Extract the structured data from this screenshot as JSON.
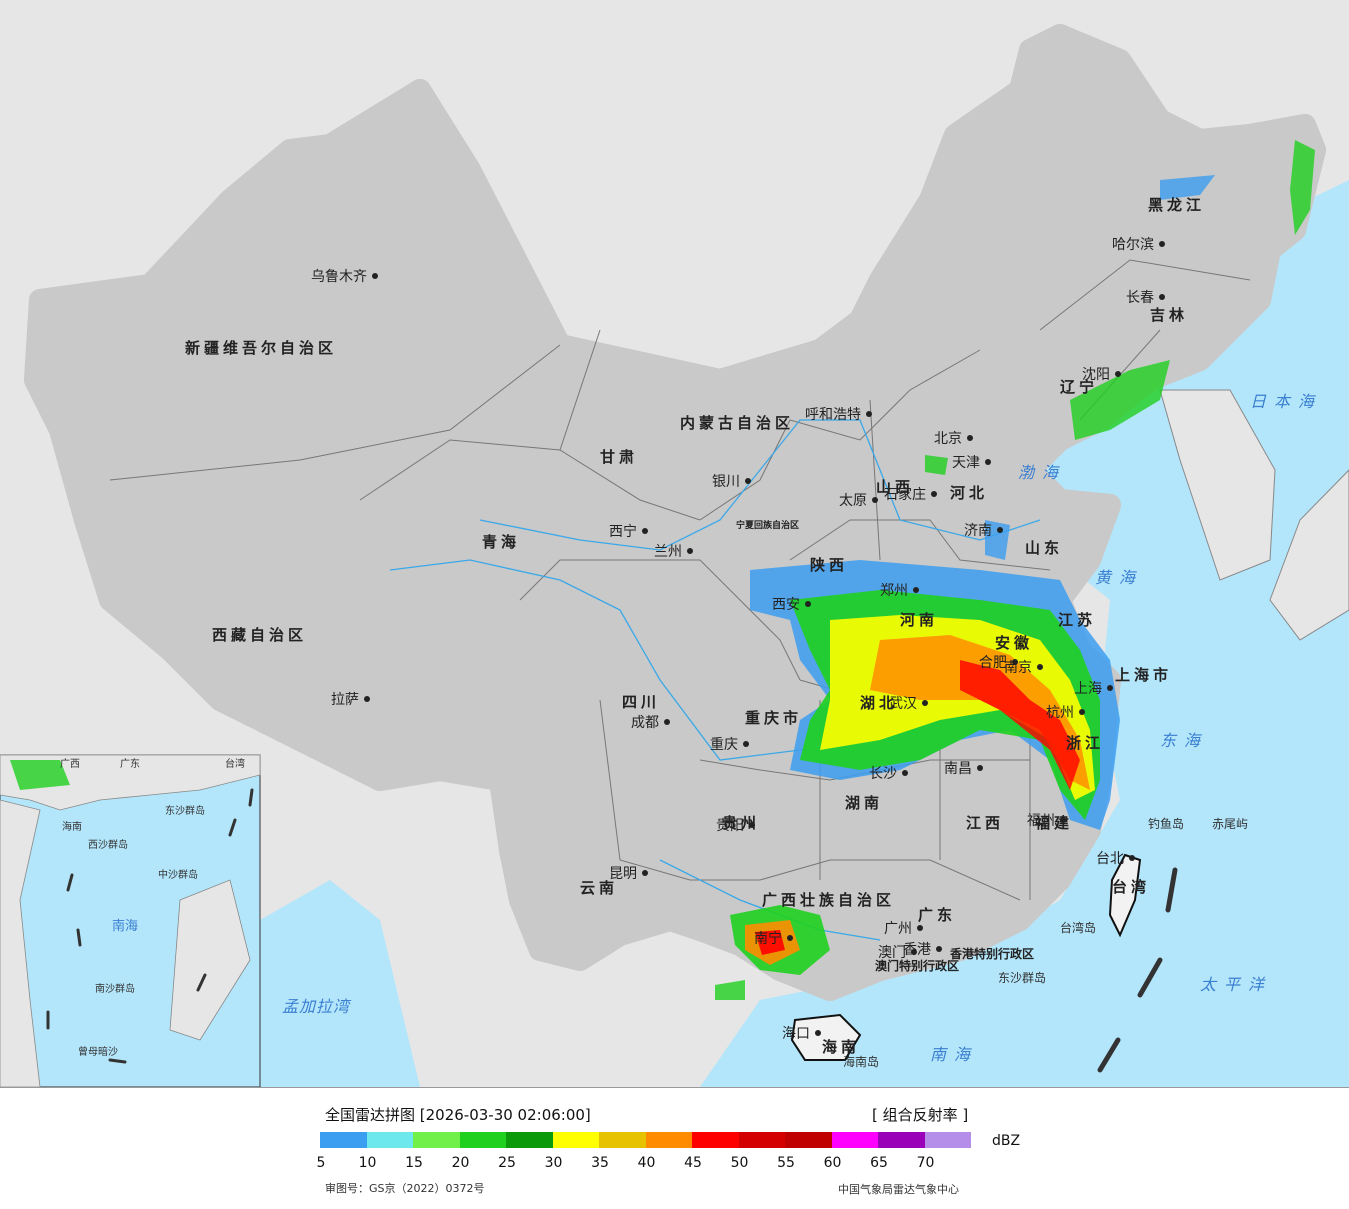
{
  "footer": {
    "title": "全国雷达拼图 [2026-03-30 02:06:00]",
    "product": "[ 组合反射率 ]",
    "unit": "dBZ",
    "review_no": "审图号：GS京（2022）0372号",
    "organization": "中国气象局雷达气象中心"
  },
  "legend": {
    "colors": [
      "#3c9ef0",
      "#6de8ec",
      "#72f04a",
      "#1fd01f",
      "#0a9a0a",
      "#ffff00",
      "#e6c200",
      "#ff8c00",
      "#ff0000",
      "#d40000",
      "#c00000",
      "#ff00ff",
      "#9900b8",
      "#b48ee8"
    ],
    "ticks": [
      "5",
      "10",
      "15",
      "20",
      "25",
      "30",
      "35",
      "40",
      "45",
      "50",
      "55",
      "60",
      "65",
      "70"
    ]
  },
  "colors": {
    "land": "#f2f2f2",
    "sea": "#b3e6fb",
    "foreign": "#e6e6e6",
    "border": "#111111",
    "river": "#3aa8e8"
  },
  "map": {
    "provinces": [
      {
        "name": "新疆维吾尔自治区"
      },
      {
        "name": "西藏自治区"
      },
      {
        "name": "青海"
      },
      {
        "name": "甘肃"
      },
      {
        "name": "内蒙古自治区"
      },
      {
        "name": "四川"
      },
      {
        "name": "云南"
      },
      {
        "name": "贵州"
      },
      {
        "name": "广西壮族自治区"
      },
      {
        "name": "广东"
      },
      {
        "name": "湖南"
      },
      {
        "name": "湖北"
      },
      {
        "name": "江西"
      },
      {
        "name": "福建"
      },
      {
        "name": "浙江"
      },
      {
        "name": "安徽"
      },
      {
        "name": "江苏"
      },
      {
        "name": "河南"
      },
      {
        "name": "山东"
      },
      {
        "name": "河北"
      },
      {
        "name": "山西"
      },
      {
        "name": "陕西"
      },
      {
        "name": "黑龙江"
      },
      {
        "name": "吉林"
      },
      {
        "name": "辽宁"
      },
      {
        "name": "海南"
      },
      {
        "name": "台湾"
      },
      {
        "name": "宁夏回族自治区"
      },
      {
        "name": "重庆市"
      },
      {
        "name": "上海市"
      },
      {
        "name": "香港特别行政区"
      },
      {
        "name": "澳门特别行政区"
      }
    ],
    "cities": [
      {
        "name": "乌鲁木齐"
      },
      {
        "name": "拉萨"
      },
      {
        "name": "西宁"
      },
      {
        "name": "兰州"
      },
      {
        "name": "银川"
      },
      {
        "name": "呼和浩特"
      },
      {
        "name": "北京"
      },
      {
        "name": "天津"
      },
      {
        "name": "石家庄"
      },
      {
        "name": "太原"
      },
      {
        "name": "西安"
      },
      {
        "name": "郑州"
      },
      {
        "name": "济南"
      },
      {
        "name": "南京"
      },
      {
        "name": "上海"
      },
      {
        "name": "合肥"
      },
      {
        "name": "武汉"
      },
      {
        "name": "杭州"
      },
      {
        "name": "长沙"
      },
      {
        "name": "南昌"
      },
      {
        "name": "福州"
      },
      {
        "name": "台北"
      },
      {
        "name": "成都"
      },
      {
        "name": "重庆"
      },
      {
        "name": "贵阳"
      },
      {
        "name": "昆明"
      },
      {
        "name": "南宁"
      },
      {
        "name": "广州"
      },
      {
        "name": "香港"
      },
      {
        "name": "澳门"
      },
      {
        "name": "海口"
      },
      {
        "name": "沈阳"
      },
      {
        "name": "长春"
      },
      {
        "name": "哈尔滨"
      }
    ],
    "seas": [
      "日本海",
      "渤海",
      "黄海",
      "东海",
      "太平洋",
      "南海",
      "孟加拉湾"
    ],
    "islands": [
      "钓鱼岛",
      "赤尾屿",
      "台湾岛",
      "东沙群岛",
      "海南岛"
    ]
  },
  "inset": {
    "labels": [
      "南海",
      "西沙群岛",
      "中沙群岛",
      "南沙群岛",
      "东沙群岛",
      "海南",
      "广东",
      "广西",
      "台湾",
      "曾母暗沙"
    ]
  }
}
